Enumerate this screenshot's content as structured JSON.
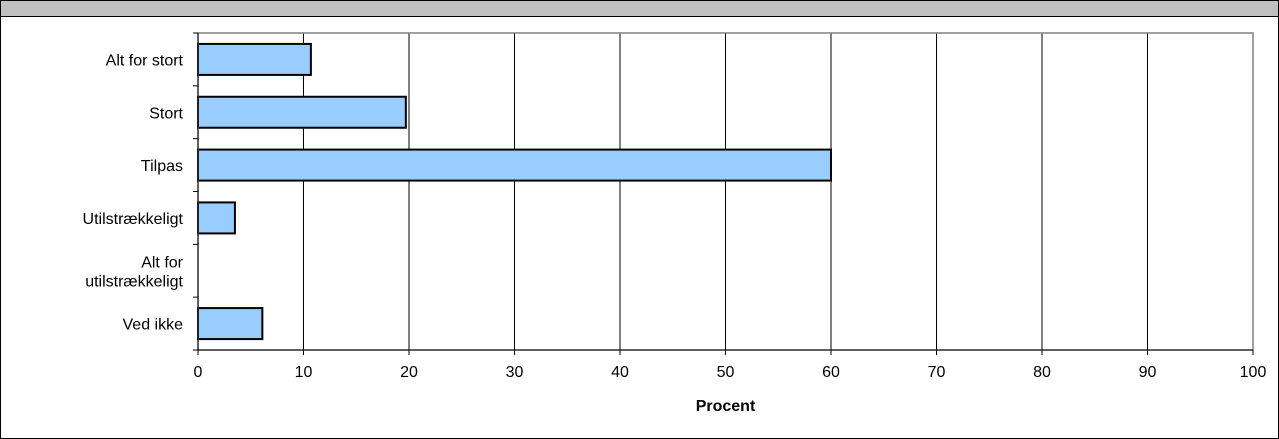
{
  "header": {
    "title": ""
  },
  "chart_data": {
    "type": "bar",
    "orientation": "horizontal",
    "categories": [
      "Alt for stort",
      "Stort",
      "Tilpas",
      "Utilstrækkeligt",
      "Alt for\nutilstrækkeligt",
      "Ved ikke"
    ],
    "values": [
      10.7,
      19.7,
      60.0,
      3.5,
      0,
      6.1
    ],
    "xlabel": "Procent",
    "ylabel": "",
    "xlim": [
      0,
      100
    ],
    "xticks": [
      "0",
      "10",
      "20",
      "30",
      "40",
      "50",
      "60",
      "70",
      "80",
      "90",
      "100"
    ],
    "grid": true,
    "legend": "none",
    "colors": {
      "bar_fill": "#99ccff",
      "bar_stroke": "#000000",
      "grid": "#000000",
      "plot_border": "#808080"
    }
  }
}
